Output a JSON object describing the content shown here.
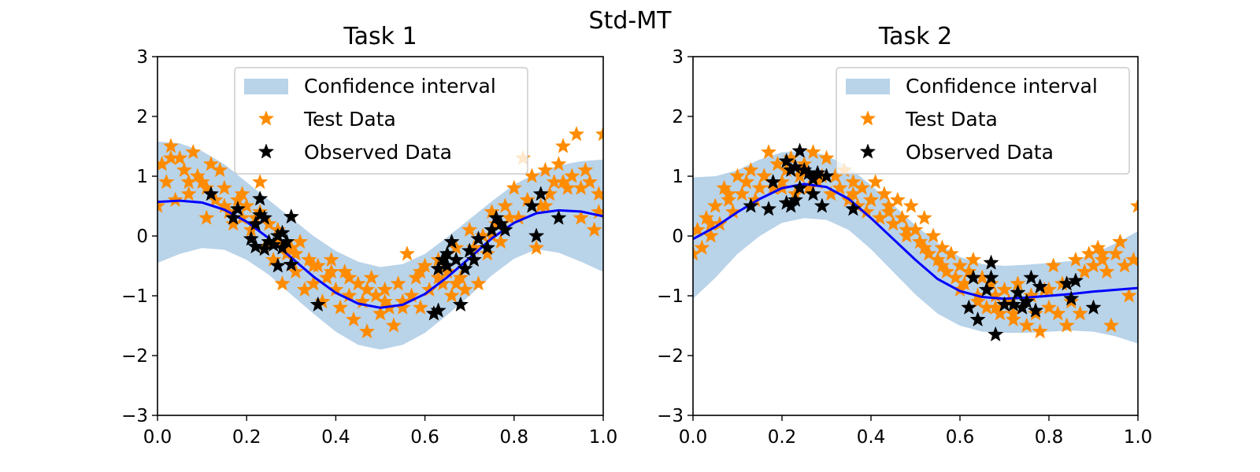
{
  "figure": {
    "suptitle": "Std-MT"
  },
  "chart_data": [
    {
      "type": "scatter",
      "title": "Task 1",
      "xlim": [
        0.0,
        1.0
      ],
      "ylim": [
        -3,
        3
      ],
      "xticks": [
        "0.0",
        "0.2",
        "0.4",
        "0.6",
        "0.8",
        "1.0"
      ],
      "yticks": [
        "3",
        "2",
        "1",
        "0",
        "−1",
        "−2",
        "−3"
      ],
      "legend_position": "upper center",
      "legend": [
        "Confidence interval",
        "Test Data",
        "Observed Data"
      ],
      "colors": {
        "band": "#b9d3e9",
        "mean": "#0000ff",
        "test": "#ff8c00",
        "observed": "#000000"
      },
      "mean": {
        "x": [
          0.0,
          0.05,
          0.1,
          0.15,
          0.2,
          0.25,
          0.3,
          0.35,
          0.4,
          0.45,
          0.5,
          0.55,
          0.6,
          0.65,
          0.7,
          0.75,
          0.8,
          0.85,
          0.9,
          0.95,
          1.0
        ],
        "y": [
          0.57,
          0.59,
          0.56,
          0.44,
          0.24,
          -0.04,
          -0.36,
          -0.68,
          -0.95,
          -1.13,
          -1.2,
          -1.15,
          -0.97,
          -0.69,
          -0.37,
          -0.04,
          0.22,
          0.38,
          0.43,
          0.41,
          0.33
        ]
      },
      "confidence_interval": {
        "x": [
          0.0,
          0.05,
          0.1,
          0.15,
          0.2,
          0.25,
          0.3,
          0.35,
          0.4,
          0.45,
          0.5,
          0.55,
          0.6,
          0.65,
          0.7,
          0.75,
          0.8,
          0.85,
          0.9,
          0.95,
          1.0
        ],
        "upper": [
          1.58,
          1.55,
          1.42,
          1.2,
          0.9,
          0.6,
          0.3,
          0.0,
          -0.25,
          -0.43,
          -0.52,
          -0.47,
          -0.3,
          -0.02,
          0.28,
          0.58,
          0.86,
          1.05,
          1.18,
          1.25,
          1.28
        ],
        "lower": [
          -0.45,
          -0.3,
          -0.2,
          -0.23,
          -0.4,
          -0.65,
          -0.98,
          -1.3,
          -1.6,
          -1.82,
          -1.9,
          -1.82,
          -1.62,
          -1.32,
          -1.0,
          -0.66,
          -0.38,
          -0.22,
          -0.28,
          -0.43,
          -0.6
        ]
      },
      "test_data": {
        "x": [
          0.0,
          0.01,
          0.02,
          0.03,
          0.04,
          0.05,
          0.06,
          0.07,
          0.08,
          0.09,
          0.1,
          0.11,
          0.12,
          0.13,
          0.14,
          0.15,
          0.16,
          0.17,
          0.18,
          0.19,
          0.2,
          0.21,
          0.22,
          0.23,
          0.24,
          0.25,
          0.26,
          0.27,
          0.28,
          0.29,
          0.3,
          0.31,
          0.32,
          0.33,
          0.34,
          0.35,
          0.36,
          0.37,
          0.38,
          0.39,
          0.4,
          0.41,
          0.42,
          0.43,
          0.44,
          0.45,
          0.46,
          0.47,
          0.48,
          0.49,
          0.5,
          0.51,
          0.52,
          0.53,
          0.54,
          0.55,
          0.56,
          0.57,
          0.58,
          0.59,
          0.6,
          0.61,
          0.62,
          0.63,
          0.64,
          0.65,
          0.66,
          0.67,
          0.68,
          0.69,
          0.7,
          0.71,
          0.72,
          0.73,
          0.74,
          0.75,
          0.76,
          0.77,
          0.78,
          0.79,
          0.8,
          0.81,
          0.82,
          0.83,
          0.84,
          0.85,
          0.86,
          0.87,
          0.88,
          0.89,
          0.9,
          0.91,
          0.92,
          0.93,
          0.94,
          0.95,
          0.96,
          0.97,
          0.98,
          0.99,
          1.0,
          0.03,
          0.07,
          0.11,
          0.15,
          0.19,
          0.23,
          0.27,
          0.31,
          0.35,
          0.39,
          0.43,
          0.47,
          0.51,
          0.55,
          0.59,
          0.63,
          0.67,
          0.71,
          0.75,
          0.79,
          0.83,
          0.87,
          0.91,
          0.95,
          0.99
        ],
        "y": [
          0.5,
          1.2,
          0.9,
          1.5,
          0.6,
          1.3,
          1.1,
          0.7,
          1.4,
          1.0,
          0.9,
          0.3,
          1.2,
          0.6,
          1.1,
          0.8,
          0.4,
          0.2,
          0.6,
          0.3,
          0.5,
          0.1,
          0.3,
          0.9,
          -0.2,
          0.2,
          -0.4,
          -0.1,
          -0.8,
          -0.3,
          -0.2,
          -0.6,
          -0.1,
          -0.9,
          -0.4,
          -0.8,
          -0.5,
          -1.1,
          -0.7,
          -0.4,
          -0.9,
          -1.2,
          -0.6,
          -1.0,
          -1.4,
          -0.8,
          -1.1,
          -1.6,
          -0.7,
          -1.0,
          -1.3,
          -0.9,
          -1.2,
          -1.5,
          -0.8,
          -1.1,
          -0.3,
          -1.0,
          -0.7,
          -1.2,
          -0.5,
          -0.9,
          -1.3,
          -0.4,
          -0.8,
          -0.6,
          -1.0,
          -0.2,
          -0.7,
          -0.9,
          0.1,
          -0.4,
          -0.8,
          0.0,
          -0.3,
          0.4,
          0.2,
          -0.1,
          0.5,
          0.3,
          0.8,
          0.3,
          1.3,
          0.6,
          1.0,
          -0.2,
          0.5,
          1.1,
          0.7,
          0.9,
          1.2,
          1.5,
          0.8,
          1.0,
          1.7,
          0.3,
          1.1,
          0.9,
          0.1,
          0.7,
          1.7,
          1.3,
          0.9,
          0.8,
          0.5,
          0.7,
          0.4,
          0.1,
          -0.3,
          -0.5,
          -0.6,
          -0.7,
          -0.9,
          -1.1,
          -1.2,
          -0.6,
          -0.7,
          -0.8,
          -0.2,
          0.0,
          0.3,
          0.6,
          0.5,
          0.9,
          0.8,
          0.4
        ]
      },
      "observed_data": {
        "x": [
          0.12,
          0.17,
          0.18,
          0.21,
          0.22,
          0.22,
          0.23,
          0.23,
          0.24,
          0.24,
          0.25,
          0.26,
          0.27,
          0.27,
          0.28,
          0.28,
          0.29,
          0.3,
          0.3,
          0.36,
          0.62,
          0.63,
          0.63,
          0.64,
          0.65,
          0.65,
          0.66,
          0.67,
          0.68,
          0.69,
          0.7,
          0.71,
          0.72,
          0.74,
          0.75,
          0.76,
          0.77,
          0.78,
          0.84,
          0.85,
          0.86,
          0.9
        ],
        "y": [
          0.7,
          0.3,
          0.45,
          -0.05,
          -0.18,
          0.2,
          0.35,
          0.62,
          0.3,
          -0.22,
          -0.1,
          -0.15,
          -0.5,
          0.0,
          0.05,
          -0.2,
          -0.1,
          0.32,
          -0.48,
          -1.15,
          -1.3,
          -1.25,
          -0.55,
          -0.4,
          -0.3,
          -0.5,
          -0.1,
          -0.4,
          -1.15,
          -0.55,
          -0.25,
          -0.4,
          -0.05,
          -0.2,
          0.1,
          0.3,
          0.2,
          0.1,
          0.5,
          0.0,
          0.7,
          0.3
        ]
      }
    },
    {
      "type": "scatter",
      "title": "Task 2",
      "xlim": [
        0.0,
        1.0
      ],
      "ylim": [
        -3,
        3
      ],
      "xticks": [
        "0.0",
        "0.2",
        "0.4",
        "0.6",
        "0.8",
        "1.0"
      ],
      "yticks": [
        "3",
        "2",
        "1",
        "0",
        "−1",
        "−2",
        "−3"
      ],
      "legend_position": "upper right",
      "legend": [
        "Confidence interval",
        "Test Data",
        "Observed Data"
      ],
      "colors": {
        "band": "#b9d3e9",
        "mean": "#0000ff",
        "test": "#ff8c00",
        "observed": "#000000"
      },
      "mean": {
        "x": [
          0.0,
          0.05,
          0.1,
          0.15,
          0.2,
          0.25,
          0.3,
          0.35,
          0.4,
          0.45,
          0.5,
          0.55,
          0.6,
          0.65,
          0.7,
          0.75,
          0.8,
          0.85,
          0.9,
          0.95,
          1.0
        ],
        "y": [
          -0.05,
          0.15,
          0.4,
          0.62,
          0.8,
          0.87,
          0.82,
          0.62,
          0.3,
          -0.05,
          -0.4,
          -0.72,
          -0.92,
          -1.02,
          -1.05,
          -1.03,
          -1.0,
          -0.97,
          -0.93,
          -0.9,
          -0.87
        ]
      },
      "confidence_interval": {
        "x": [
          0.0,
          0.05,
          0.1,
          0.15,
          0.2,
          0.25,
          0.3,
          0.35,
          0.4,
          0.45,
          0.5,
          0.55,
          0.6,
          0.65,
          0.7,
          0.75,
          0.8,
          0.85,
          0.9,
          0.95,
          1.0
        ],
        "upper": [
          0.98,
          1.0,
          1.1,
          1.28,
          1.4,
          1.43,
          1.35,
          1.15,
          0.85,
          0.52,
          0.18,
          -0.12,
          -0.35,
          -0.47,
          -0.5,
          -0.48,
          -0.45,
          -0.42,
          -0.3,
          -0.12,
          0.08
        ],
        "lower": [
          -1.05,
          -0.7,
          -0.3,
          0.0,
          0.22,
          0.3,
          0.27,
          0.1,
          -0.22,
          -0.6,
          -0.98,
          -1.3,
          -1.5,
          -1.6,
          -1.62,
          -1.62,
          -1.6,
          -1.58,
          -1.6,
          -1.68,
          -1.8
        ]
      },
      "test_data": {
        "x": [
          0.0,
          0.01,
          0.02,
          0.03,
          0.04,
          0.05,
          0.06,
          0.07,
          0.08,
          0.09,
          0.1,
          0.11,
          0.12,
          0.13,
          0.14,
          0.15,
          0.16,
          0.17,
          0.18,
          0.19,
          0.2,
          0.21,
          0.22,
          0.23,
          0.24,
          0.25,
          0.26,
          0.27,
          0.28,
          0.29,
          0.3,
          0.31,
          0.32,
          0.33,
          0.34,
          0.35,
          0.36,
          0.37,
          0.38,
          0.39,
          0.4,
          0.41,
          0.42,
          0.43,
          0.44,
          0.45,
          0.46,
          0.47,
          0.48,
          0.49,
          0.5,
          0.51,
          0.52,
          0.53,
          0.54,
          0.55,
          0.56,
          0.57,
          0.58,
          0.59,
          0.6,
          0.61,
          0.62,
          0.63,
          0.64,
          0.65,
          0.66,
          0.67,
          0.68,
          0.69,
          0.7,
          0.71,
          0.72,
          0.73,
          0.74,
          0.75,
          0.76,
          0.77,
          0.78,
          0.79,
          0.8,
          0.81,
          0.82,
          0.83,
          0.84,
          0.85,
          0.86,
          0.87,
          0.88,
          0.89,
          0.9,
          0.91,
          0.92,
          0.93,
          0.94,
          0.95,
          0.96,
          0.97,
          0.98,
          0.99,
          1.0,
          0.04,
          0.08,
          0.12,
          0.16,
          0.2,
          0.24,
          0.28,
          0.32,
          0.36,
          0.4,
          0.44,
          0.48,
          0.52,
          0.56,
          0.6,
          0.64,
          0.68,
          0.72,
          0.76,
          0.8,
          0.84,
          0.88,
          0.92,
          0.96
        ],
        "y": [
          -0.3,
          0.1,
          -0.2,
          0.3,
          0.0,
          0.5,
          0.2,
          0.8,
          0.6,
          0.4,
          1.0,
          0.7,
          0.9,
          1.1,
          0.6,
          0.8,
          1.0,
          1.4,
          0.8,
          1.2,
          0.9,
          1.1,
          1.3,
          0.7,
          1.0,
          1.2,
          0.8,
          1.4,
          0.9,
          1.0,
          1.3,
          0.7,
          1.0,
          0.8,
          1.1,
          0.6,
          0.9,
          0.5,
          0.8,
          0.4,
          0.6,
          0.9,
          0.3,
          0.7,
          0.5,
          0.2,
          0.6,
          0.3,
          0.0,
          0.5,
          0.1,
          -0.1,
          0.3,
          -0.3,
          0.0,
          -0.4,
          -0.2,
          -0.6,
          -0.3,
          -0.7,
          -0.5,
          -0.8,
          -0.6,
          -0.4,
          -1.0,
          -0.7,
          -1.2,
          -0.8,
          -1.0,
          -1.3,
          -0.9,
          -1.1,
          -1.4,
          -0.8,
          -1.2,
          -1.5,
          -1.0,
          -1.3,
          -1.6,
          -0.9,
          -1.2,
          -0.5,
          -1.3,
          -0.8,
          -1.5,
          -1.1,
          -0.4,
          -1.3,
          -0.6,
          -0.3,
          -0.5,
          -0.2,
          -0.4,
          -0.6,
          -1.5,
          -0.3,
          -0.1,
          -0.5,
          -1.0,
          -0.4,
          0.5,
          0.2,
          0.7,
          0.9,
          1.0,
          0.8,
          1.1,
          0.9,
          1.0,
          0.7,
          0.6,
          0.4,
          0.1,
          -0.2,
          -0.5,
          -0.9,
          -1.1,
          -1.2,
          -1.3,
          -1.0,
          -0.9,
          -0.8,
          -0.6,
          -0.3,
          -0.1
        ]
      },
      "observed_data": {
        "x": [
          0.13,
          0.17,
          0.18,
          0.21,
          0.21,
          0.22,
          0.22,
          0.23,
          0.23,
          0.24,
          0.24,
          0.25,
          0.26,
          0.27,
          0.27,
          0.28,
          0.29,
          0.3,
          0.36,
          0.62,
          0.63,
          0.64,
          0.66,
          0.67,
          0.67,
          0.7,
          0.72,
          0.73,
          0.74,
          0.75,
          0.76,
          0.77,
          0.78,
          0.84,
          0.85,
          0.86,
          0.9,
          0.68
        ],
        "y": [
          0.5,
          0.45,
          0.9,
          0.55,
          1.25,
          1.1,
          0.5,
          0.6,
          1.15,
          1.42,
          0.8,
          1.1,
          1.05,
          0.7,
          0.95,
          1.05,
          0.5,
          1.0,
          0.45,
          -1.2,
          -0.7,
          -1.4,
          -0.9,
          -0.45,
          -0.7,
          -1.15,
          -1.15,
          -0.95,
          -1.2,
          -1.1,
          -0.7,
          -1.25,
          -0.85,
          -0.8,
          -1.05,
          -0.75,
          -1.2,
          -1.65
        ]
      }
    }
  ]
}
